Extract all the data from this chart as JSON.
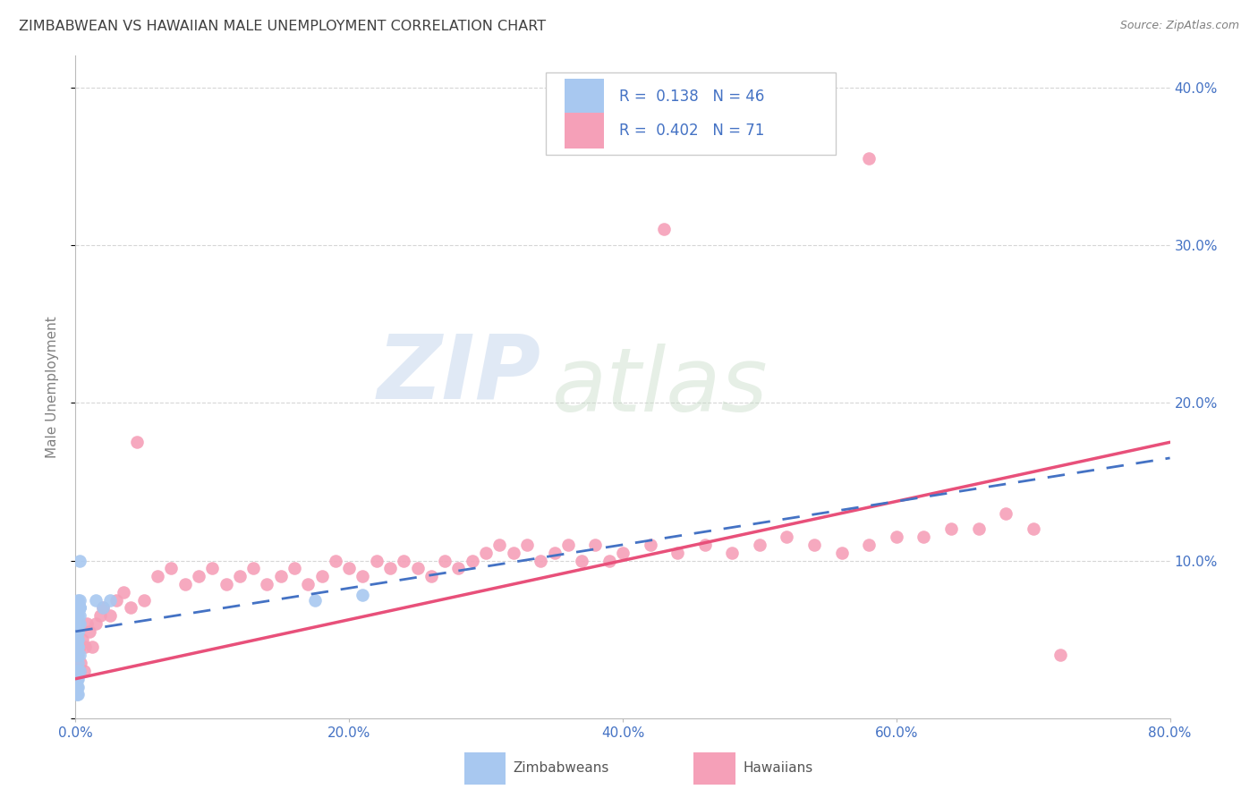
{
  "title": "ZIMBABWEAN VS HAWAIIAN MALE UNEMPLOYMENT CORRELATION CHART",
  "source": "Source: ZipAtlas.com",
  "ylabel": "Male Unemployment",
  "xlim": [
    0.0,
    0.8
  ],
  "ylim": [
    0.0,
    0.42
  ],
  "watermark_zip": "ZIP",
  "watermark_atlas": "atlas",
  "zimb_color": "#a8c8f0",
  "haw_color": "#f5a0b8",
  "zimb_line_color": "#4472c4",
  "haw_line_color": "#e8507a",
  "background_color": "#ffffff",
  "grid_color": "#cccccc",
  "title_color": "#404040",
  "axis_tick_color": "#4472c4",
  "legend_text_color": "#4472c4",
  "ylabel_color": "#808080",
  "source_color": "#808080"
}
